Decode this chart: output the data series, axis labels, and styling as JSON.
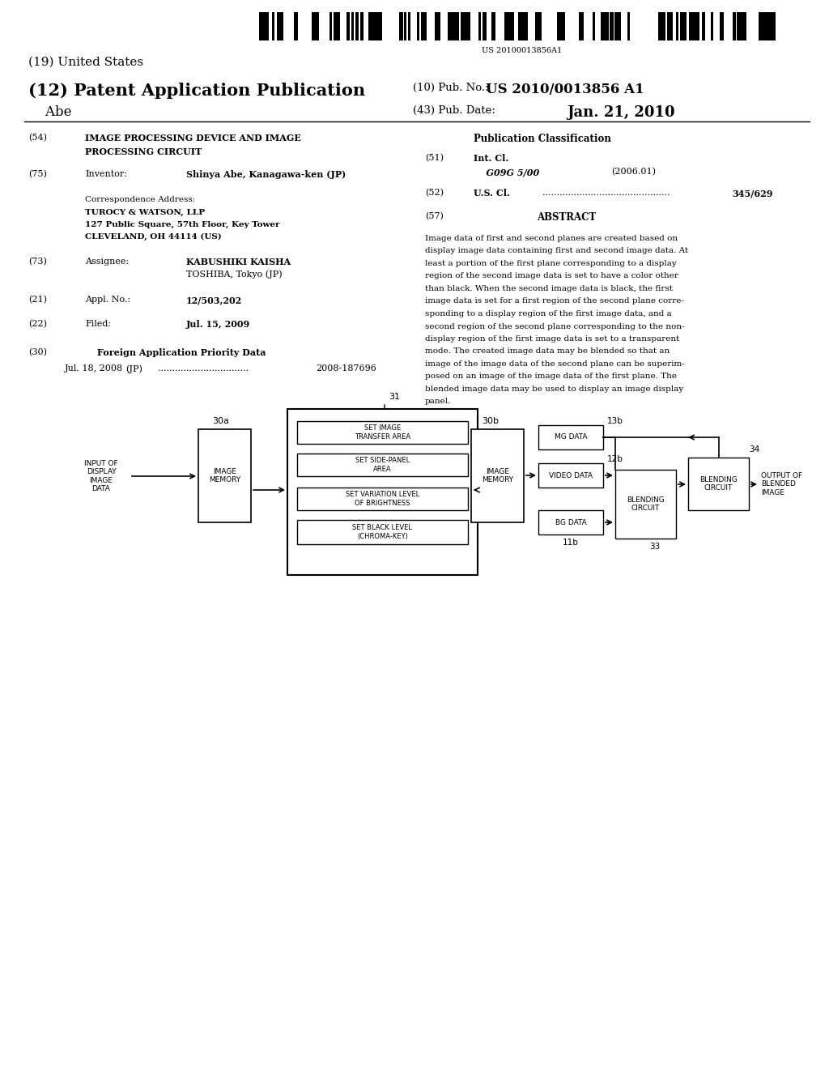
{
  "background_color": "#ffffff",
  "barcode_text": "US 20100013856A1",
  "title19": "(19) United States",
  "title12": "(12) Patent Application Publication",
  "pub_no_label": "(10) Pub. No.:",
  "pub_no_value": "US 2010/0013856 A1",
  "inventor_name": "Abe",
  "pub_date_label": "(43) Pub. Date:",
  "pub_date_value": "Jan. 21, 2010",
  "field54_label": "(54)",
  "field54_text1": "IMAGE PROCESSING DEVICE AND IMAGE",
  "field54_text2": "PROCESSING CIRCUIT",
  "field75_label": "(75)",
  "field75_title": "Inventor:",
  "field75_value": "Shinya Abe, Kanagawa-ken (JP)",
  "corr_label": "Correspondence Address:",
  "corr_line1": "TUROCY & WATSON, LLP",
  "corr_line2": "127 Public Square, 57th Floor, Key Tower",
  "corr_line3": "CLEVELAND, OH 44114 (US)",
  "field73_label": "(73)",
  "field73_title": "Assignee:",
  "field73_value1": "KABUSHIKI KAISHA",
  "field73_value2": "TOSHIBA, Tokyo (JP)",
  "field21_label": "(21)",
  "field21_title": "Appl. No.:",
  "field21_value": "12/503,202",
  "field22_label": "(22)",
  "field22_title": "Filed:",
  "field22_value": "Jul. 15, 2009",
  "field30_label": "(30)",
  "field30_title": "Foreign Application Priority Data",
  "field30_date": "Jul. 18, 2008",
  "field30_country": "(JP)",
  "field30_dots": "................................",
  "field30_number": "2008-187696",
  "pub_class_title": "Publication Classification",
  "field51_label": "(51)",
  "field51_title": "Int. Cl.",
  "field51_class": "G09G 5/00",
  "field51_year": "(2006.01)",
  "field52_label": "(52)",
  "field52_title": "U.S. Cl.",
  "field52_dots": ".............................................",
  "field52_value": "345/629",
  "field57_label": "(57)",
  "field57_title": "ABSTRACT",
  "abstract_lines": [
    "Image data of first and second planes are created based on",
    "display image data containing first and second image data. At",
    "least a portion of the first plane corresponding to a display",
    "region of the second image data is set to have a color other",
    "than black. When the second image data is black, the first",
    "image data is set for a first region of the second plane corre-",
    "sponding to a display region of the first image data, and a",
    "second region of the second plane corresponding to the non-",
    "display region of the first image data is set to a transparent",
    "mode. The created image data may be blended so that an",
    "image of the image data of the second plane can be superim-",
    "posed on an image of the image data of the first plane. The",
    "blended image data may be used to display an image display",
    "panel."
  ],
  "diagram_label31": "31",
  "diagram_label30a": "30a",
  "diagram_label30b": "30b",
  "diagram_label13b": "13b",
  "diagram_label12b": "12b",
  "diagram_label11b": "11b",
  "diagram_label34": "34",
  "diagram_label33": "33",
  "input_text": "INPUT OF\nDISPLAY\nIMAGE\nDATA",
  "image_memory_text": "IMAGE\nMEMORY",
  "image_memory2_text": "IMAGE\nMEMORY",
  "set_image_transfer": "SET IMAGE\nTRANSFER AREA",
  "set_side_panel": "SET SIDE-PANEL\nAREA",
  "set_variation": "SET VARIATION LEVEL\nOF BRIGHTNESS",
  "set_black_level": "SET BLACK LEVEL\n(CHROMA-KEY)",
  "mg_data_text": "MG DATA",
  "video_data_text": "VIDEO DATA",
  "bg_data_text": "BG DATA",
  "blending_circuit1": "BLENDING\nCIRCUIT",
  "blending_circuit2": "BLENDING\nCIRCUIT",
  "output_text": "OUTPUT OF\nBLENDED\nIMAGE"
}
